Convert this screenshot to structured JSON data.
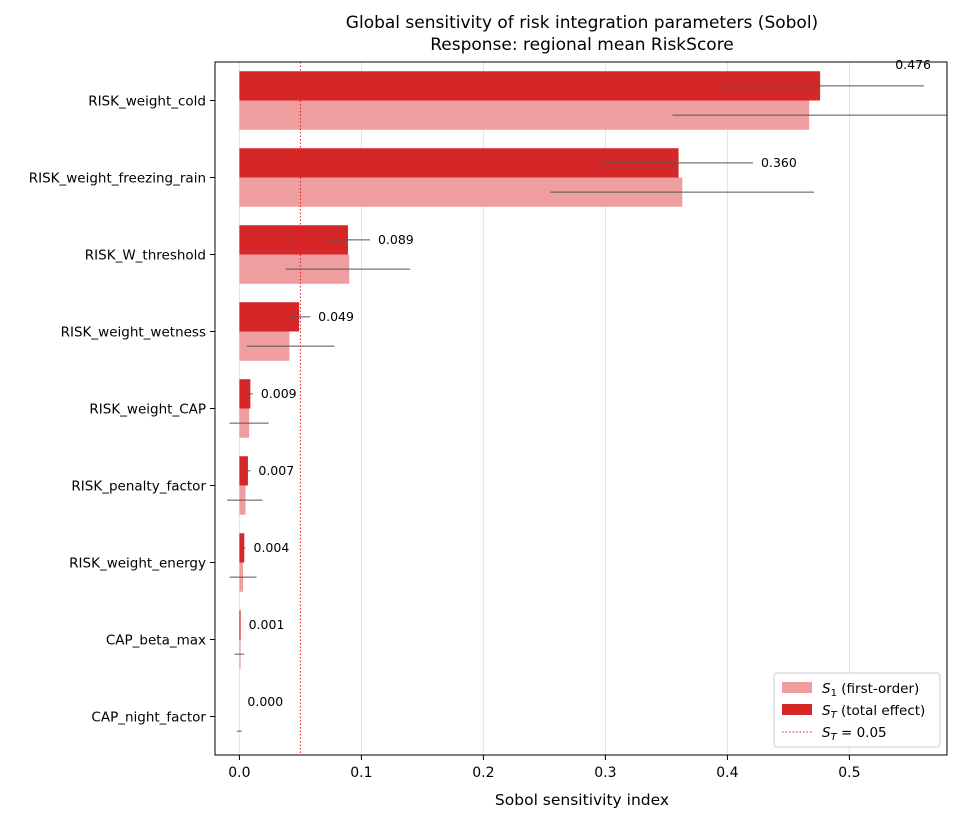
{
  "chart_data": {
    "type": "bar",
    "orientation": "horizontal",
    "title": "Global sensitivity of risk integration parameters (Sobol)",
    "subtitle": "Response: regional mean RiskScore",
    "xlabel": "Sobol sensitivity index",
    "ylabel": "",
    "xlim": [
      -0.02,
      0.58
    ],
    "xticks": [
      "0.0",
      "0.1",
      "0.2",
      "0.3",
      "0.4",
      "0.5"
    ],
    "grid": "vertical",
    "categories": [
      "RISK_weight_cold",
      "RISK_weight_freezing_rain",
      "RISK_W_threshold",
      "RISK_weight_wetness",
      "RISK_weight_CAP",
      "RISK_penalty_factor",
      "RISK_weight_energy",
      "CAP_beta_max",
      "CAP_night_factor"
    ],
    "series": [
      {
        "name": "S₁ (first-order)",
        "color": "#ee9e9e",
        "values": [
          0.467,
          0.363,
          0.09,
          0.041,
          0.008,
          0.005,
          0.003,
          0.001,
          0.0
        ],
        "ci": [
          [
            0.355,
            0.58
          ],
          [
            0.255,
            0.471
          ],
          [
            0.038,
            0.14
          ],
          [
            0.006,
            0.078
          ],
          [
            -0.008,
            0.024
          ],
          [
            -0.01,
            0.019
          ],
          [
            -0.008,
            0.014
          ],
          [
            -0.004,
            0.004
          ],
          [
            -0.002,
            0.002
          ]
        ]
      },
      {
        "name": "S_T (total effect)",
        "color": "#d62728",
        "values": [
          0.476,
          0.36,
          0.089,
          0.049,
          0.009,
          0.007,
          0.004,
          0.001,
          0.0
        ],
        "ci": [
          [
            0.391,
            0.561
          ],
          [
            0.296,
            0.421
          ],
          [
            0.071,
            0.107
          ],
          [
            0.041,
            0.058
          ],
          [
            0.007,
            0.011
          ],
          [
            0.005,
            0.009
          ],
          [
            0.003,
            0.005
          ],
          [
            0.001,
            0.001
          ],
          [
            0.0,
            0.0
          ]
        ],
        "labels": [
          "0.476",
          "0.360",
          "0.089",
          "0.049",
          "0.009",
          "0.007",
          "0.004",
          "0.001",
          "0.000"
        ]
      }
    ],
    "threshold": {
      "name": "S_T = 0.05",
      "value": 0.05,
      "color": "#e8191b",
      "style": "dotted"
    },
    "legend": {
      "position": "bottom-right",
      "items": [
        {
          "key": "s1",
          "prefix": "S",
          "sub": "1",
          "text": " (first-order)",
          "color": "#ee9e9e",
          "kind": "patch"
        },
        {
          "key": "st",
          "prefix": "S",
          "sub": "T",
          "text": " (total effect)",
          "color": "#d62728",
          "kind": "patch"
        },
        {
          "key": "thr",
          "prefix": "S",
          "sub": "T",
          "text": " = 0.05",
          "color": "#e8191b",
          "kind": "line"
        }
      ]
    }
  }
}
